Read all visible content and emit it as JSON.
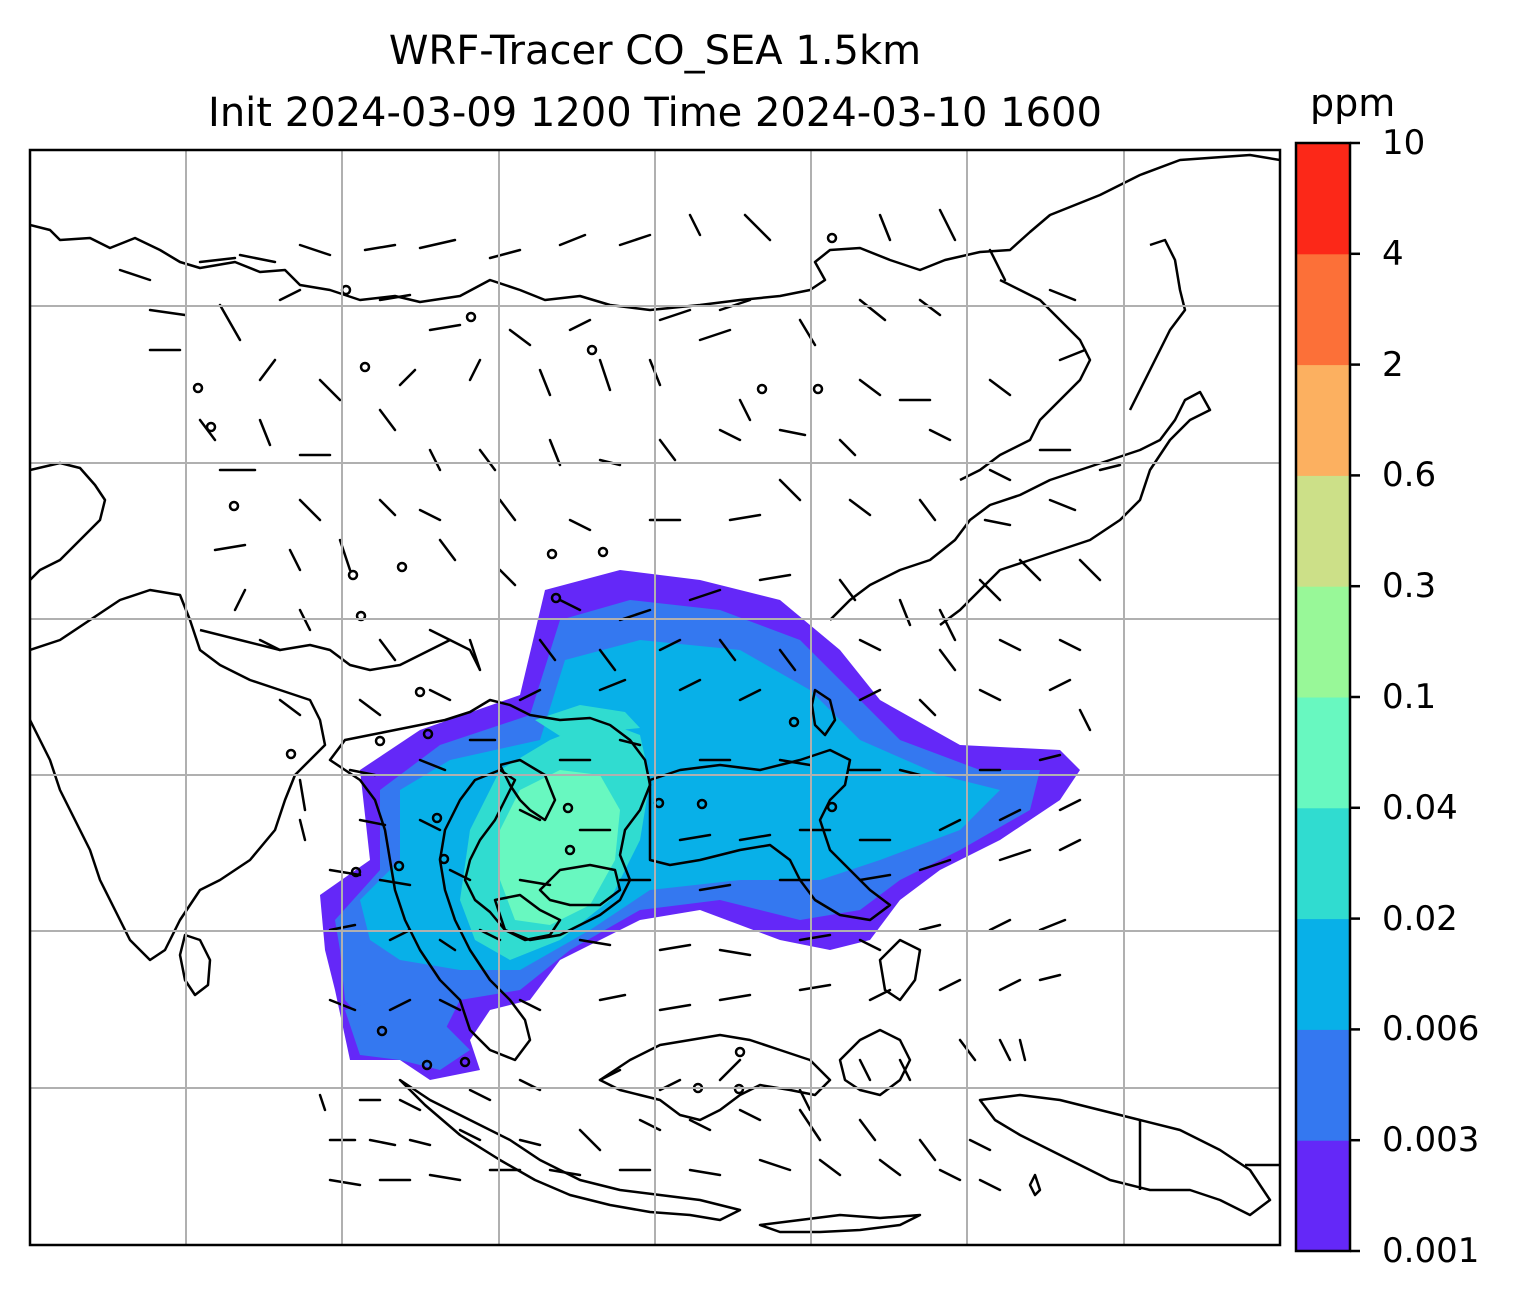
{
  "title": {
    "line1": "WRF-Tracer CO_SEA 1.5km",
    "line2": "Init 2024-03-09 1200 Time 2024-03-10 1600"
  },
  "colorbar": {
    "unit": "ppm",
    "levels": [
      "0.001",
      "0.003",
      "0.006",
      "0.02",
      "0.04",
      "0.1",
      "0.3",
      "0.6",
      "2",
      "4",
      "10"
    ],
    "colors": [
      "#6428f8",
      "#3478f0",
      "#08b0e8",
      "#30dcd0",
      "#68f8c0",
      "#98f898",
      "#cce088",
      "#fcb060",
      "#fc7038",
      "#fc2818"
    ]
  },
  "map": {
    "gridlines": true,
    "overlay": "wind-barbs"
  }
}
